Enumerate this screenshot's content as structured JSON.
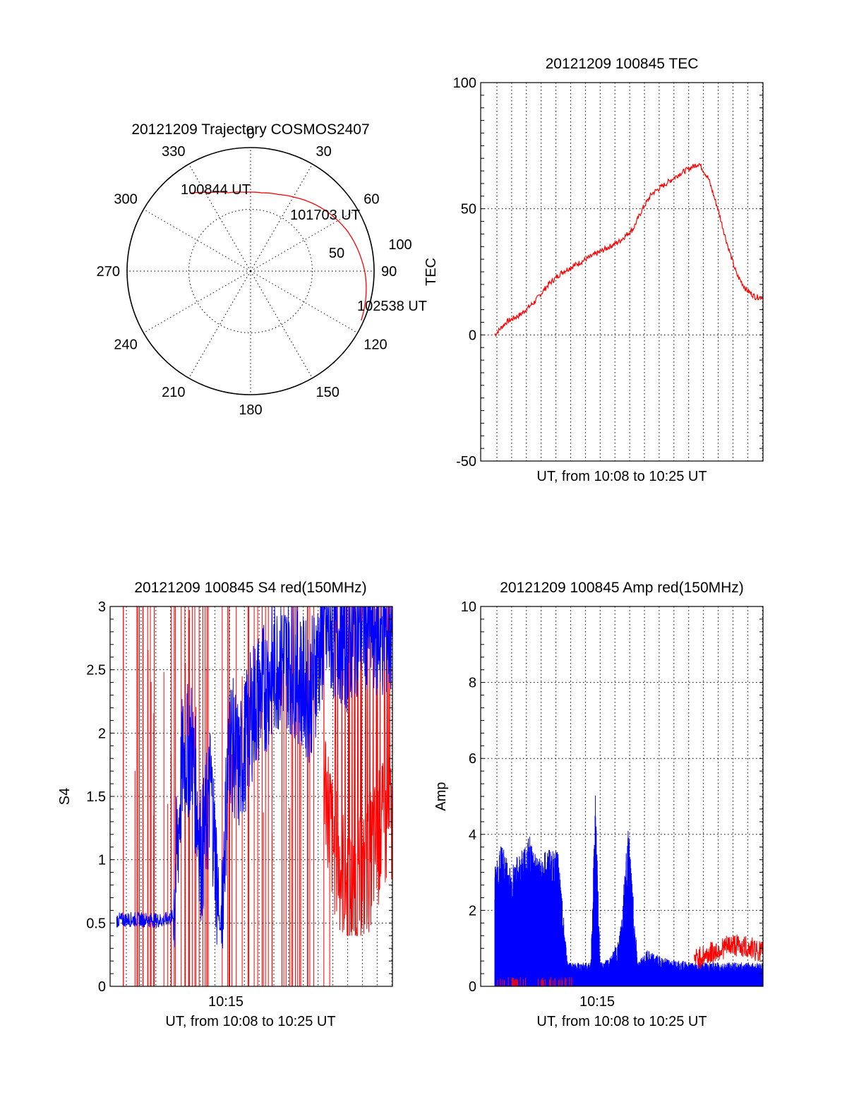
{
  "chart_data": [
    {
      "id": "trajectory",
      "type": "polar",
      "title": "20121209 Trajectory COSMOS2407",
      "azimuth_labels": [
        "0",
        "30",
        "60",
        "90",
        "120",
        "150",
        "180",
        "210",
        "240",
        "270",
        "300",
        "330"
      ],
      "radial_labels": [
        "50",
        "100"
      ],
      "rlim": [
        0,
        100
      ],
      "grid": true,
      "series": [
        {
          "color": "#ff0000",
          "points": [
            {
              "az": -38,
              "r": 80
            },
            {
              "az": -28,
              "r": 72
            },
            {
              "az": -16,
              "r": 66
            },
            {
              "az": -4,
              "r": 64
            },
            {
              "az": 8,
              "r": 64
            },
            {
              "az": 20,
              "r": 66
            },
            {
              "az": 32,
              "r": 70
            },
            {
              "az": 44,
              "r": 75
            },
            {
              "az": 56,
              "r": 80
            },
            {
              "az": 68,
              "r": 85
            },
            {
              "az": 80,
              "r": 89
            },
            {
              "az": 92,
              "r": 93
            },
            {
              "az": 104,
              "r": 96
            },
            {
              "az": 114,
              "r": 98
            }
          ]
        }
      ],
      "annotations": [
        "100844 UT",
        "101703 UT",
        "102538 UT"
      ]
    },
    {
      "id": "tec",
      "type": "line",
      "title": "20121209 100845 TEC",
      "xlabel": "UT, from 10:08 to 10:25 UT",
      "ylabel": "TEC",
      "xlim": [
        10.133,
        10.433
      ],
      "ylim": [
        -50,
        100
      ],
      "yticks": [
        "-50",
        "0",
        "50",
        "100"
      ],
      "grid": true,
      "series": [
        {
          "color": "#ff0000",
          "x": [
            10.148,
            10.16,
            10.175,
            10.19,
            10.205,
            10.22,
            10.235,
            10.25,
            10.265,
            10.28,
            10.295,
            10.305,
            10.315,
            10.33,
            10.345,
            10.355,
            10.365,
            10.375,
            10.385,
            10.395,
            10.405,
            10.415,
            10.425,
            10.433
          ],
          "y": [
            0,
            5,
            8,
            13,
            20,
            25,
            28,
            31,
            34,
            37,
            42,
            50,
            56,
            60,
            64,
            66,
            68,
            62,
            50,
            36,
            24,
            18,
            15,
            15
          ]
        }
      ]
    },
    {
      "id": "s4",
      "type": "line",
      "title": "20121209 100845 S4 red(150MHz)",
      "xlabel": "UT, from 10:08 to 10:25 UT",
      "ylabel": "S4",
      "xtick_labels": [
        "10:15"
      ],
      "ylim": [
        0,
        3
      ],
      "yticks": [
        "0",
        "0.5",
        "1",
        "1.5",
        "2",
        "2.5",
        "3"
      ],
      "grid": true,
      "series": [
        {
          "color": "#0000ff",
          "x": [
            10.133,
            10.16,
            10.19,
            10.2,
            10.21,
            10.22,
            10.23,
            10.24,
            10.25,
            10.26,
            10.27,
            10.285,
            10.3,
            10.315,
            10.33,
            10.345,
            10.36,
            10.375,
            10.385,
            10.4,
            10.42,
            10.433
          ],
          "y": [
            0.52,
            0.53,
            0.52,
            0.55,
            1.8,
            1.9,
            1.0,
            1.6,
            0.4,
            2.0,
            1.7,
            2.2,
            2.4,
            2.6,
            2.5,
            2.3,
            2.8,
            2.8,
            2.7,
            2.9,
            2.8,
            2.8
          ]
        },
        {
          "color": "#ff0000",
          "x": [
            10.36,
            10.37,
            10.38,
            10.39,
            10.4,
            10.41,
            10.42,
            10.433
          ],
          "y": [
            1.6,
            1.0,
            0.8,
            0.6,
            0.7,
            0.9,
            1.1,
            1.2
          ]
        }
      ]
    },
    {
      "id": "amp",
      "type": "line",
      "title": "20121209 100845 Amp red(150MHz)",
      "xlabel": "UT, from 10:08 to 10:25 UT",
      "ylabel": "Amp",
      "xtick_labels": [
        "10:15"
      ],
      "ylim": [
        0,
        10
      ],
      "yticks": [
        "0",
        "2",
        "4",
        "6",
        "8",
        "10"
      ],
      "grid": true,
      "series": [
        {
          "color": "#0000ff",
          "x": [
            10.148,
            10.155,
            10.165,
            10.175,
            10.185,
            10.195,
            10.205,
            10.215,
            10.225,
            10.23,
            10.24,
            10.25,
            10.255,
            10.26,
            10.27,
            10.28,
            10.29,
            10.3,
            10.31,
            10.33,
            10.36,
            10.39,
            10.41,
            10.433
          ],
          "y": [
            3.0,
            3.6,
            3.0,
            3.4,
            3.8,
            3.2,
            3.5,
            3.4,
            0.7,
            0.6,
            0.6,
            0.6,
            4.9,
            0.6,
            0.7,
            1.2,
            4.0,
            0.6,
            0.9,
            0.7,
            0.6,
            0.6,
            0.6,
            0.6
          ]
        },
        {
          "color": "#ff0000",
          "x": [
            10.36,
            10.38,
            10.4,
            10.42,
            10.433
          ],
          "y": [
            0.7,
            0.9,
            1.1,
            1.0,
            0.9
          ]
        }
      ]
    }
  ]
}
